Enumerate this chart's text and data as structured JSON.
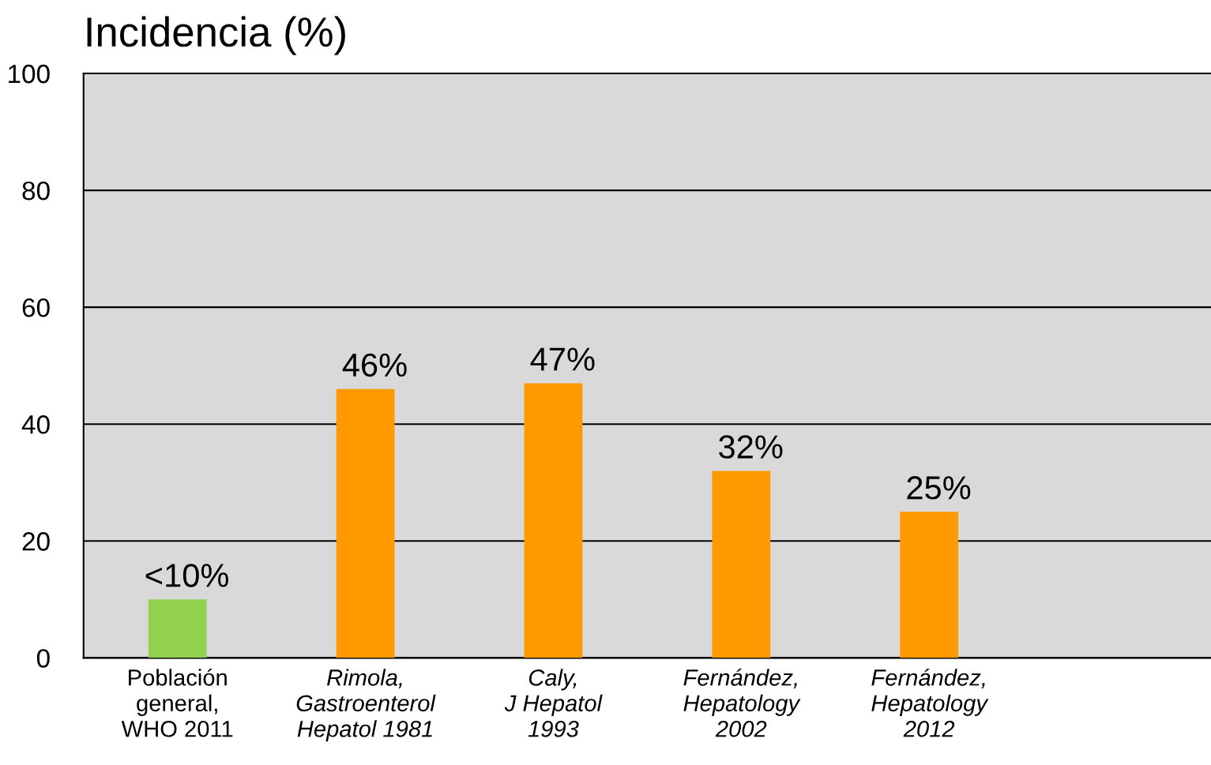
{
  "chart_data": {
    "type": "bar",
    "title": "Incidencia (%)",
    "categories": [
      "Población\ngeneral,\nWHO 2011",
      "Rimola,\nGastroenterol\nHepatol 1981",
      "Caly,\nJ Hepatol\n1993",
      "Fernández,\nHepatology\n2002",
      "Fernández,\nHepatology\n2012",
      null
    ],
    "values": [
      10,
      46,
      47,
      32,
      25,
      null
    ],
    "colors": [
      "#92d050",
      "#ff9900",
      "#ff9900",
      "#ff9900",
      "#ff9900",
      null
    ],
    "value_labels": [
      "<10%",
      "46%",
      "47%",
      "32%",
      "25%",
      null
    ],
    "ylim": [
      0,
      100
    ],
    "yticks": [
      0,
      20,
      40,
      60,
      80,
      100
    ],
    "grid": "y"
  }
}
